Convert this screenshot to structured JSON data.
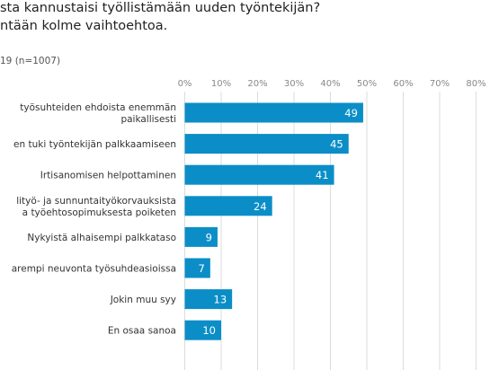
{
  "header": {
    "title_line1": "sta kannustaisi työllistämään uuden työntekijän?",
    "title_line2": "ntään kolme vaihtoehtoa.",
    "subtitle": "19 (n=1007)"
  },
  "colors": {
    "bar": "#0b8ec7",
    "grid": "#dcdcdc"
  },
  "chart_data": {
    "type": "bar",
    "orientation": "horizontal",
    "xlim": [
      0,
      80
    ],
    "tick_labels": [
      "0%",
      "10%",
      "20%",
      "30%",
      "40%",
      "50%",
      "60%",
      "70%",
      "80%"
    ],
    "ticks": [
      0,
      10,
      20,
      30,
      40,
      50,
      60,
      70,
      80
    ],
    "grid": true,
    "categories": [
      [
        "työsuhteiden ehdoista enemmän",
        "paikallisesti"
      ],
      [
        "en tuki työntekijän palkkaamiseen"
      ],
      [
        "Irtisanomisen helpottaminen"
      ],
      [
        "lityö- ja sunnuntaityökorvauksista",
        "a työehtosopimuksesta poiketen"
      ],
      [
        "Nykyistä alhaisempi palkkataso"
      ],
      [
        "arempi neuvonta työsuhdeasioissa"
      ],
      [
        "Jokin muu syy"
      ],
      [
        "En osaa sanoa"
      ]
    ],
    "values": [
      49,
      45,
      41,
      24,
      9,
      7,
      13,
      10
    ]
  }
}
